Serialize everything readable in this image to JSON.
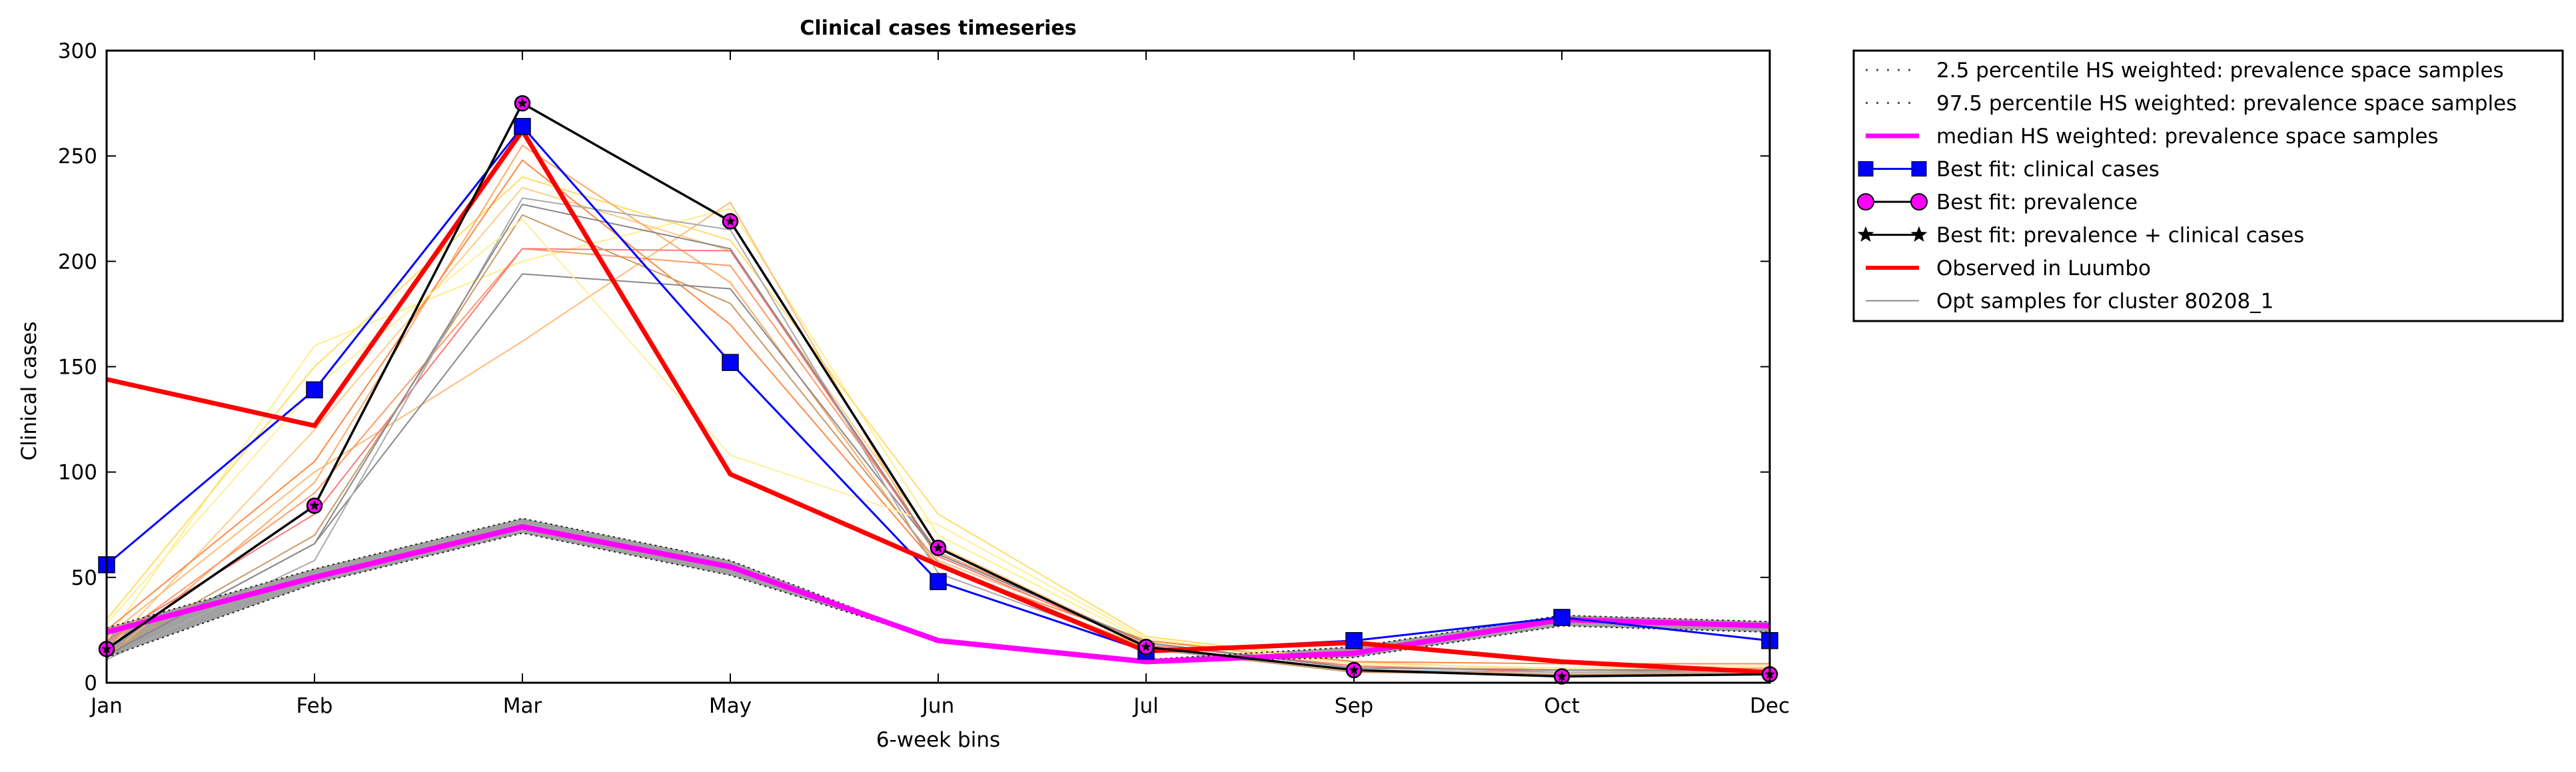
{
  "chart_data": {
    "type": "line",
    "title": "Clinical cases timeseries",
    "xlabel": "6-week bins",
    "ylabel": "Clinical cases",
    "x_categories": [
      "Jan",
      "Feb",
      "Mar",
      "May",
      "Jun",
      "Jul",
      "Sep",
      "Oct",
      "Dec"
    ],
    "ylim": [
      0,
      300
    ],
    "yticks": [
      0,
      50,
      100,
      150,
      200,
      250,
      300
    ],
    "grid": false,
    "legend_position": "outside-right-top",
    "series": [
      {
        "name": "2.5 percentile HS weighted: prevalence space samples",
        "color": "#555555",
        "style": "dotted",
        "values": [
          12,
          47,
          71,
          51,
          20,
          10,
          12,
          27,
          24
        ]
      },
      {
        "name": "97.5 percentile HS weighted: prevalence space samples",
        "color": "#555555",
        "style": "dotted",
        "values": [
          26,
          54,
          78,
          58,
          20,
          11,
          17,
          32,
          29
        ]
      },
      {
        "name": "median HS weighted: prevalence space samples",
        "color": "#ff00ff",
        "style": "solid",
        "values": [
          24,
          50,
          74,
          55,
          20,
          10,
          14,
          30,
          27
        ]
      },
      {
        "name": "Best fit: clinical cases",
        "color": "#0000ff",
        "marker": "square",
        "values": [
          56,
          139,
          264,
          152,
          48,
          15,
          20,
          31,
          20
        ]
      },
      {
        "name": "Best fit: prevalence",
        "color": "#000000",
        "marker": "circle",
        "marker_fill": "#ff00ff",
        "values": [
          16,
          84,
          275,
          219,
          64,
          17,
          6,
          3,
          4
        ]
      },
      {
        "name": "Best fit: prevalence + clinical cases",
        "color": "#000000",
        "marker": "star",
        "values": [
          16,
          84,
          275,
          219,
          64,
          17,
          6,
          3,
          4
        ]
      },
      {
        "name": "Observed in Luumbo",
        "color": "#ff0000",
        "style": "thick",
        "values": [
          144,
          122,
          262,
          99,
          56,
          15,
          19,
          10,
          5
        ]
      },
      {
        "name": "Opt samples for cluster 80208_1",
        "color": "#888888",
        "style": "thin",
        "values": [
          13,
          66,
          227,
          206,
          61,
          19,
          7,
          6,
          6
        ]
      }
    ],
    "opt_samples": [
      {
        "color": "#ffee88",
        "values": [
          20,
          160,
          200,
          225,
          70,
          20,
          8,
          5,
          6
        ]
      },
      {
        "color": "#ffdd66",
        "values": [
          30,
          150,
          240,
          210,
          80,
          22,
          10,
          6,
          7
        ]
      },
      {
        "color": "#ffcc88",
        "values": [
          15,
          120,
          235,
          205,
          65,
          18,
          8,
          6,
          6
        ]
      },
      {
        "color": "#ffbb77",
        "values": [
          22,
          100,
          162,
          228,
          58,
          20,
          9,
          7,
          8
        ]
      },
      {
        "color": "#ffaa66",
        "values": [
          12,
          95,
          255,
          190,
          55,
          17,
          6,
          4,
          5
        ]
      },
      {
        "color": "#ff9966",
        "values": [
          18,
          90,
          206,
          198,
          62,
          19,
          7,
          6,
          7
        ]
      },
      {
        "color": "#ff7777",
        "values": [
          20,
          80,
          206,
          205,
          60,
          18,
          8,
          5,
          6
        ]
      },
      {
        "color": "#ff8844",
        "values": [
          25,
          105,
          248,
          170,
          55,
          20,
          10,
          9,
          9
        ]
      },
      {
        "color": "#cc9966",
        "values": [
          14,
          70,
          222,
          180,
          57,
          16,
          5,
          4,
          4
        ]
      },
      {
        "color": "#888888",
        "values": [
          13,
          66,
          194,
          187,
          61,
          19,
          7,
          6,
          6
        ]
      },
      {
        "color": "#aaaaaa",
        "values": [
          11,
          58,
          230,
          215,
          52,
          16,
          6,
          5,
          5
        ]
      },
      {
        "color": "#ffee99",
        "values": [
          28,
          140,
          220,
          108,
          75,
          21,
          9,
          7,
          8
        ]
      }
    ]
  },
  "legend": {
    "items": [
      {
        "label": "2.5 percentile HS weighted: prevalence space samples",
        "kind": "dotted",
        "color": "#555555"
      },
      {
        "label": "97.5 percentile HS weighted: prevalence space samples",
        "kind": "dotted",
        "color": "#555555"
      },
      {
        "label": "median HS weighted: prevalence space samples",
        "kind": "line",
        "color": "#ff00ff",
        "width": 7
      },
      {
        "label": "Best fit: clinical cases",
        "kind": "square",
        "color": "#0000ff"
      },
      {
        "label": "Best fit: prevalence",
        "kind": "circle",
        "color": "#ff00ff"
      },
      {
        "label": "Best fit: prevalence + clinical cases",
        "kind": "star",
        "color": "#000000"
      },
      {
        "label": "Observed in Luumbo",
        "kind": "line",
        "color": "#ff0000",
        "width": 6
      },
      {
        "label": "Opt samples for cluster 80208_1",
        "kind": "line",
        "color": "#888888",
        "width": 2
      }
    ]
  }
}
